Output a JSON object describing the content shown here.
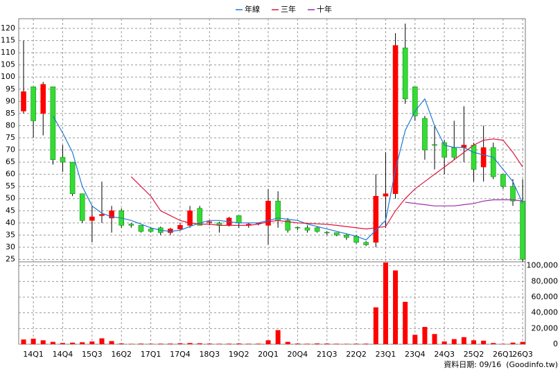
{
  "chart_data": {
    "type": "candlestick",
    "categories": [
      null,
      "14Q1",
      null,
      null,
      "14Q4",
      null,
      null,
      "15Q3",
      null,
      null,
      "16Q2",
      null,
      null,
      "17Q1",
      null,
      null,
      "17Q4",
      null,
      null,
      "18Q3",
      null,
      null,
      "19Q2",
      null,
      null,
      "20Q1",
      null,
      null,
      "20Q4",
      null,
      null,
      "21Q3",
      null,
      null,
      "22Q2",
      null,
      null,
      "23Q1",
      null,
      null,
      "23Q4",
      null,
      null,
      "24Q3",
      null,
      null,
      "25Q2",
      null,
      null,
      "26Q1",
      null,
      "26Q3"
    ],
    "open": [
      86,
      96,
      85,
      96,
      67,
      65,
      52,
      41,
      43,
      42,
      45,
      39.5,
      39,
      37.5,
      38,
      36,
      37.5,
      39,
      46,
      40.5,
      40,
      39,
      43,
      39.5,
      40,
      39,
      49,
      41,
      38.2,
      38,
      38,
      36.2,
      36,
      35,
      34.5,
      32,
      32,
      51,
      52,
      112,
      96,
      83,
      72.2,
      73,
      71,
      71,
      72,
      63,
      71,
      60,
      55,
      49
    ],
    "high": [
      115,
      96,
      98,
      96,
      72,
      65,
      52,
      47,
      57,
      47,
      46,
      40,
      39,
      38,
      38.5,
      38,
      40,
      47,
      47,
      41,
      40.5,
      42.5,
      43,
      40,
      40,
      54,
      53,
      42,
      38.5,
      39,
      38.5,
      36.5,
      36,
      35.5,
      35,
      32.5,
      60,
      69,
      118,
      122,
      96,
      84,
      80,
      74,
      82,
      88,
      73,
      80,
      73,
      60,
      58,
      58
    ],
    "low": [
      85,
      75,
      76,
      64,
      61,
      51,
      40,
      32,
      40,
      36,
      38,
      38,
      36,
      36,
      35,
      35,
      37,
      38,
      39,
      39,
      36,
      38.5,
      38,
      38,
      39,
      31,
      38,
      36,
      37,
      36,
      36,
      35,
      34.5,
      33,
      31.5,
      30.5,
      30,
      38,
      50,
      89,
      82,
      66,
      62,
      60,
      66,
      65,
      57,
      57,
      58,
      54,
      47,
      24
    ],
    "close": [
      94,
      82,
      97,
      66,
      65,
      52,
      41,
      42.5,
      43.5,
      45,
      39,
      39,
      36.5,
      36.5,
      36,
      37.5,
      39,
      45,
      39,
      40.5,
      39,
      42,
      40,
      39.5,
      40,
      49,
      41,
      37,
      38,
      37,
      36.5,
      36,
      35,
      34,
      32,
      31,
      51,
      52,
      113,
      91,
      84,
      70,
      72,
      67,
      67,
      72,
      62,
      71,
      59,
      55,
      49,
      25
    ],
    "up_color": "#ff0000",
    "down_color": "#33dd33",
    "ylim": [
      24,
      124
    ],
    "yticks": [
      25,
      30,
      35,
      40,
      45,
      50,
      55,
      60,
      65,
      70,
      75,
      80,
      85,
      90,
      95,
      100,
      105,
      110,
      115,
      120
    ],
    "grid": true,
    "series": [
      {
        "name": "年線",
        "color": "#1e78d2",
        "values": [
          null,
          null,
          null,
          84,
          77,
          69,
          55,
          47,
          44,
          42.5,
          42,
          41,
          39.5,
          38,
          37,
          36.5,
          37,
          38.5,
          40,
          41,
          41,
          40.5,
          40,
          40,
          40,
          41,
          42,
          41.5,
          41,
          39.5,
          38.5,
          37.5,
          36.5,
          35.5,
          34.5,
          33,
          37,
          41,
          62,
          78,
          86,
          91,
          80,
          72,
          71,
          71,
          69,
          68,
          67,
          62,
          57,
          48
        ]
      },
      {
        "name": "三年",
        "color": "#dc143c",
        "values": [
          null,
          null,
          null,
          null,
          null,
          null,
          null,
          null,
          null,
          null,
          null,
          59,
          55,
          51,
          45,
          43,
          41,
          40,
          39.5,
          39.5,
          39,
          39,
          39,
          39,
          39.5,
          40.5,
          41,
          40.5,
          40,
          39.8,
          39.6,
          39.4,
          39,
          38.5,
          38,
          37.5,
          38,
          38.5,
          45,
          50,
          54,
          57,
          60,
          63,
          66,
          69,
          72,
          74,
          74.5,
          74,
          69,
          63
        ]
      },
      {
        "name": "十年",
        "color": "#9a2ab0",
        "values": [
          null,
          null,
          null,
          null,
          null,
          null,
          null,
          null,
          null,
          null,
          null,
          null,
          null,
          null,
          null,
          null,
          null,
          null,
          null,
          null,
          null,
          null,
          null,
          null,
          null,
          null,
          null,
          null,
          null,
          null,
          null,
          null,
          null,
          null,
          null,
          null,
          null,
          null,
          null,
          48.5,
          48,
          47.5,
          47,
          47,
          47,
          47.5,
          48,
          49,
          49.5,
          49.5,
          49.5,
          49
        ]
      }
    ],
    "volume": {
      "values": [
        6000,
        7000,
        5000,
        3000,
        1500,
        2000,
        2500,
        3500,
        7500,
        4000,
        1000,
        500,
        800,
        600,
        700,
        800,
        1200,
        1500,
        1200,
        800,
        600,
        700,
        900,
        600,
        700,
        5000,
        18000,
        3000,
        800,
        600,
        1000,
        800,
        600,
        500,
        600,
        700,
        47000,
        104000,
        94000,
        54000,
        12000,
        22000,
        13000,
        3500,
        6500,
        9000,
        5000,
        4500,
        1500,
        500,
        2000,
        3000
      ],
      "ylim": [
        0,
        105000
      ],
      "yticks": [
        0,
        {
          "value": 20000,
          "label": "20,000"
        },
        {
          "value": 40000,
          "label": "40,000"
        },
        {
          "value": 60000,
          "label": "60,000"
        },
        {
          "value": 80000,
          "label": "80,000"
        },
        {
          "value": 100000,
          "label": "100,000"
        }
      ]
    },
    "footer": "資料日期: 09/16  (Goodinfo.tw)"
  }
}
